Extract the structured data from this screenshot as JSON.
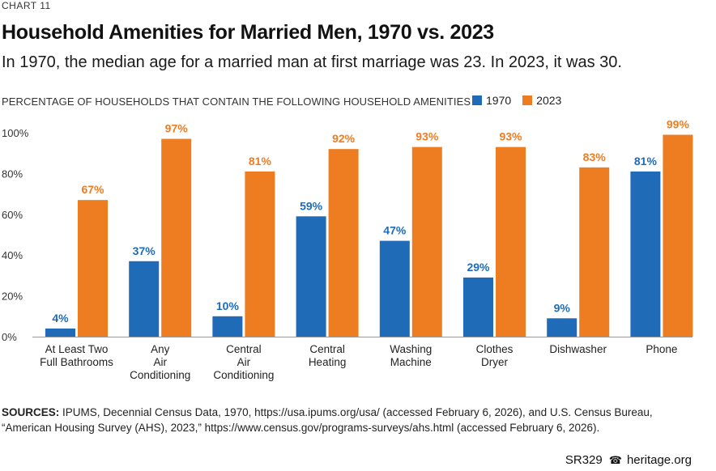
{
  "header": {
    "chart_number": "CHART 11",
    "title": "Household Amenities for Married Men, 1970 vs. 2023",
    "subtitle": "In 1970, the median age for a married man at first marriage was 23. In 2023, it was 30."
  },
  "colors": {
    "series_1970": "#1f6bb8",
    "series_2023": "#ee7d22",
    "axis": "#9a9a9a"
  },
  "chart_data": {
    "type": "bar",
    "ylabel": "PERCENTAGE OF HOUSEHOLDS THAT CONTAIN THE FOLLOWING HOUSEHOLD AMENITIES",
    "ylim": [
      0,
      100
    ],
    "yticks": [
      "0%",
      "20%",
      "40%",
      "60%",
      "80%",
      "100%"
    ],
    "legend_position": "top-right",
    "grid": false,
    "categories": [
      [
        "At Least Two",
        "Full Bathrooms"
      ],
      [
        "Any",
        "Air",
        "Conditioning"
      ],
      [
        "Central",
        "Air",
        "Conditioning"
      ],
      [
        "Central",
        "Heating"
      ],
      [
        "Washing",
        "Machine"
      ],
      [
        "Clothes",
        "Dryer"
      ],
      [
        "Dishwasher"
      ],
      [
        "Phone"
      ]
    ],
    "series": [
      {
        "name": "1970",
        "values": [
          4,
          37,
          10,
          59,
          47,
          29,
          9,
          81
        ],
        "labels": [
          "4%",
          "37%",
          "10%",
          "59%",
          "47%",
          "29%",
          "9%",
          "81%"
        ]
      },
      {
        "name": "2023",
        "values": [
          67,
          97,
          81,
          92,
          93,
          93,
          83,
          99
        ],
        "labels": [
          "67%",
          "97%",
          "81%",
          "92%",
          "93%",
          "93%",
          "83%",
          "99%"
        ]
      }
    ]
  },
  "sources": {
    "label": "SOURCES:",
    "text": " IPUMS, Decennial Census Data, 1970, https://usa.ipums.org/usa/ (accessed February 6, 2026), and U.S. Census Bureau, “American Housing Survey (AHS), 2023,” https://www.census.gov/programs-surveys/ahs.html (accessed February 6, 2026)."
  },
  "footer": {
    "report_id": "SR329",
    "site": "heritage.org",
    "logo_icon": "bell-icon"
  }
}
